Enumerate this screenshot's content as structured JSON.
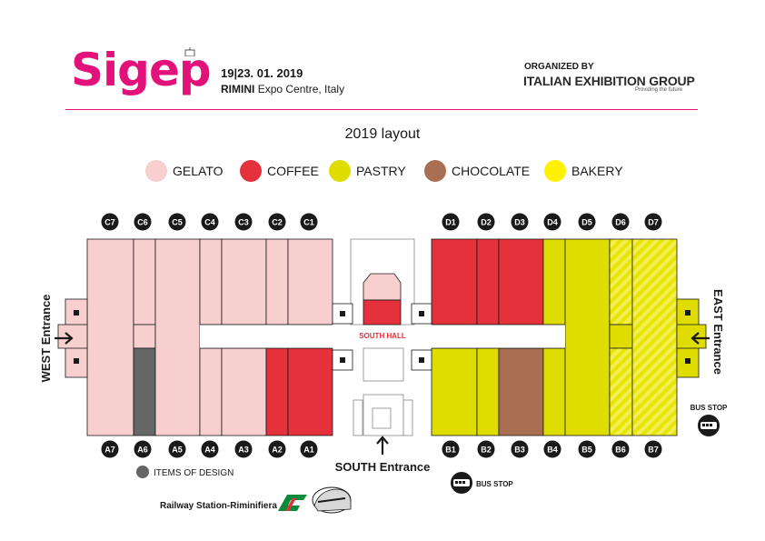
{
  "header": {
    "logo_text": "Sigep",
    "dates": "19|23. 01. 2019",
    "venue_city": "RIMINI",
    "venue_rest": "Expo Centre, Italy",
    "organized_by": "ORGANIZED BY",
    "organizer": "ITALIAN EXHIBITION GROUP",
    "organizer_tagline": "Providing the future"
  },
  "title": "2019 layout",
  "legend": [
    {
      "label": "GELATO",
      "color": "#f8cfcf"
    },
    {
      "label": "COFFEE",
      "color": "#e4313b"
    },
    {
      "label": "PASTRY",
      "color": "#dfdd00"
    },
    {
      "label": "CHOCOLATE",
      "color": "#a86f52"
    },
    {
      "label": "BAKERY",
      "color": "#fff200"
    }
  ],
  "colors": {
    "gelato": "#f8cfcf",
    "coffee": "#e4313b",
    "pastry": "#dfdd00",
    "chocolate": "#a86f52",
    "bakery": "#fff200",
    "design": "#666666",
    "brand": "#e2127a"
  },
  "halls": {
    "north_west": [
      "C7",
      "C6",
      "C5",
      "C4",
      "C3",
      "C2",
      "C1"
    ],
    "north_east": [
      "D1",
      "D2",
      "D3",
      "D4",
      "D5",
      "D6",
      "D7"
    ],
    "south_west": [
      "A7",
      "A6",
      "A5",
      "A4",
      "A3",
      "A2",
      "A1"
    ],
    "south_east": [
      "B1",
      "B2",
      "B3",
      "B4",
      "B5",
      "B6",
      "B7"
    ]
  },
  "labels": {
    "south_hall": "SOUTH HALL",
    "west_entrance": "WEST Entrance",
    "east_entrance": "EAST Entrance",
    "south_entrance": "SOUTH Entrance",
    "bus_stop_east": "BUS STOP",
    "bus_stop_south": "BUS STOP",
    "items_of_design": "ITEMS OF DESIGN",
    "railway": "Railway Station-Riminifiera"
  },
  "icons": {
    "entrance_arrow": "arrow-icon",
    "bus": "bus-icon",
    "train": "train-icon",
    "railway_brand": "rail-logo-icon"
  }
}
